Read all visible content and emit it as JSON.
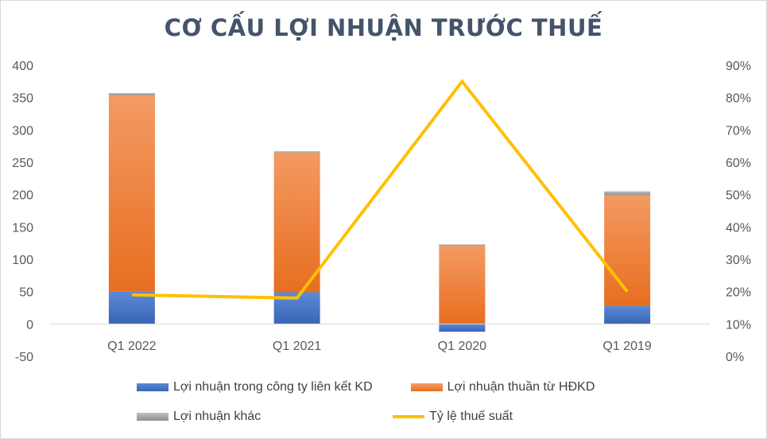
{
  "chart_data": {
    "type": "bar",
    "title": "CƠ CẤU LỢI NHUẬN TRƯỚC THUẾ",
    "categories": [
      "Q1 2022",
      "Q1 2021",
      "Q1 2020",
      "Q1 2019"
    ],
    "series": [
      {
        "name": "Lợi nhuận trong công ty liên kết KD",
        "type": "bar",
        "axis": "left",
        "color": "#4472c4",
        "values": [
          50,
          49,
          -12,
          28
        ]
      },
      {
        "name": "Lợi nhuận thuần từ HĐKD",
        "type": "bar",
        "axis": "left",
        "color": "#ed7d31",
        "values": [
          303,
          216,
          121,
          171
        ]
      },
      {
        "name": "Lợi nhuận khác",
        "type": "bar",
        "axis": "left",
        "color": "#a5a5a5",
        "values": [
          4,
          2,
          2,
          6
        ]
      },
      {
        "name": "Tỷ lệ thuế suất",
        "type": "line",
        "axis": "right",
        "color": "#ffc000",
        "values": [
          0.19,
          0.18,
          0.85,
          0.2
        ]
      }
    ],
    "y_left": {
      "min": -50,
      "max": 400,
      "ticks": [
        "-50",
        "0",
        "50",
        "100",
        "150",
        "200",
        "250",
        "300",
        "350",
        "400"
      ]
    },
    "y_right": {
      "min": 0,
      "max": 0.9,
      "ticks": [
        "0%",
        "10%",
        "20%",
        "30%",
        "40%",
        "50%",
        "60%",
        "70%",
        "80%",
        "90%"
      ]
    },
    "grid": false,
    "legend_position": "bottom"
  }
}
